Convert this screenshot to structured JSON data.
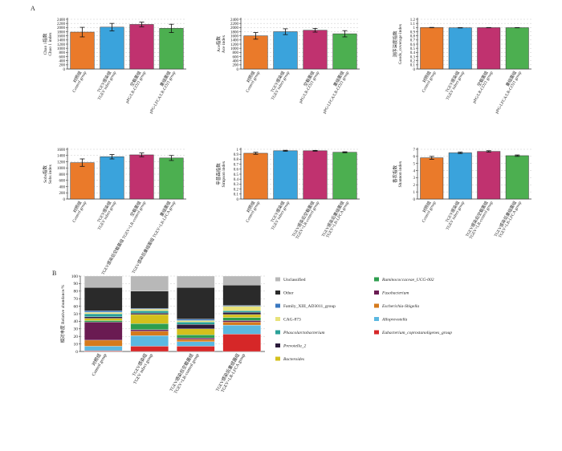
{
  "figure": {
    "label_a": "A",
    "label_b": "B"
  },
  "colors": {
    "orange": "#ea7a2a",
    "blue": "#3aa3dc",
    "magenta": "#c0326f",
    "green": "#4caf50"
  },
  "chart_data": [
    {
      "type": "bar",
      "ylabel_cn": "Chao 1指数",
      "ylabel_en": "Chao 1 index",
      "categories_cn": [
        "对照组",
        "TGEV感染组",
        "空载菌组",
        "重组菌组"
      ],
      "categories_en": [
        "Control group",
        "TGEV infect group",
        "pPG/LR-CO21 group",
        "pPG-LFCA/LR-CO21 group"
      ],
      "values": [
        1780,
        2020,
        2150,
        1960
      ],
      "errors": [
        230,
        180,
        110,
        200
      ],
      "ylim": [
        0,
        2400
      ],
      "yticks": [
        0,
        200,
        400,
        600,
        800,
        1000,
        1200,
        1400,
        1600,
        1800,
        2000,
        2200,
        2400
      ]
    },
    {
      "type": "bar",
      "ylabel_cn": "Ace指数",
      "ylabel_en": "Ace index",
      "categories_cn": [
        "对照组",
        "TGEV感染组",
        "空载菌组",
        "重组菌组"
      ],
      "categories_en": [
        "Control group",
        "TGEV infect group",
        "pPG/LR-CO21 group",
        "pPG-LFCA/LR-CO21 group"
      ],
      "values": [
        1600,
        1800,
        1870,
        1700
      ],
      "errors": [
        160,
        140,
        90,
        150
      ],
      "ylim": [
        0,
        2400
      ],
      "yticks": [
        0,
        200,
        400,
        600,
        800,
        1000,
        1200,
        1400,
        1600,
        1800,
        2000,
        2200,
        2400
      ]
    },
    {
      "type": "bar",
      "ylabel_cn": "测序深度指数",
      "ylabel_en": "Goods_coverage index",
      "categories_cn": [
        "对照组",
        "TGEV感染组",
        "空载菌组",
        "重组菌组"
      ],
      "categories_en": [
        "Control group",
        "TGEV infect group",
        "pPG/LR-CO21 group",
        "pPG-LFCA/LR-CO21 group"
      ],
      "values": [
        1.0,
        0.995,
        0.998,
        0.997
      ],
      "errors": [
        0.004,
        0.004,
        0.003,
        0.003
      ],
      "ylim": [
        0,
        1.2
      ],
      "yticks": [
        0,
        0.1,
        0.2,
        0.3,
        0.4,
        0.5,
        0.6,
        0.7,
        0.8,
        0.9,
        1.0,
        1.1,
        1.2
      ]
    },
    {
      "type": "bar",
      "ylabel_cn": "Sobs指数",
      "ylabel_en": "Sobs index",
      "categories_cn": [
        "对照组",
        "TGEV感染组",
        "空载菌组",
        "重组菌组"
      ],
      "categories_en": [
        "Control group",
        "TGEV infect group",
        "TGEV感染后空载菌组 TGEV+LR-control group",
        "TGEV感染后重组菌组 TGEV+LR-LFCA group"
      ],
      "values": [
        1170,
        1360,
        1420,
        1320
      ],
      "errors": [
        120,
        70,
        60,
        80
      ],
      "ylim": [
        0,
        1600
      ],
      "yticks": [
        0,
        200,
        400,
        600,
        800,
        1000,
        1200,
        1400,
        1600
      ]
    },
    {
      "type": "bar",
      "ylabel_cn": "辛普森指数",
      "ylabel_en": "Simpson index",
      "categories_cn": [
        "对照组",
        "TGEV感染组",
        "TGEV感染后空载菌组",
        "TGEV感染后重组菌组"
      ],
      "categories_en": [
        "Control group",
        "TGEV infect group",
        "TGEV+LR-control group",
        "TGEV+LR-LFCA group"
      ],
      "values": [
        0.92,
        0.97,
        0.97,
        0.94
      ],
      "errors": [
        0.02,
        0.01,
        0.008,
        0.01
      ],
      "ylim": [
        0,
        1.0
      ],
      "yticks": [
        0,
        0.1,
        0.2,
        0.3,
        0.4,
        0.5,
        0.6,
        0.7,
        0.8,
        0.9,
        1.0
      ]
    },
    {
      "type": "bar",
      "ylabel_cn": "香农指数",
      "ylabel_en": "Shannon index",
      "categories_cn": [
        "对照组",
        "TGEV感染组",
        "TGEV感染后空载菌组",
        "TGEV感染后重组菌组"
      ],
      "categories_en": [
        "Control group",
        "TGEV infect group",
        "TGEV+LR-control group",
        "TGEV+LR-LFCA group"
      ],
      "values": [
        5.8,
        6.5,
        6.7,
        6.1
      ],
      "errors": [
        0.2,
        0.1,
        0.1,
        0.1
      ],
      "ylim": [
        0,
        7
      ],
      "yticks": [
        0,
        1,
        2,
        3,
        4,
        5,
        6,
        7
      ]
    },
    {
      "type": "stacked_bar",
      "ylabel": "相对丰度 Relative abundance/%",
      "ylim": [
        0,
        100
      ],
      "yticks": [
        0,
        10,
        20,
        30,
        40,
        50,
        60,
        70,
        80,
        90,
        100
      ],
      "categories_cn": [
        "对照组",
        "TGEV感染组",
        "TGEV感染后空载菌组",
        "TGEV感染后重组菌组"
      ],
      "categories_en": [
        "Control group",
        "TGEV infect group",
        "TGEV+LR-control group",
        "TGEV+LR-LFCA group"
      ],
      "series": [
        {
          "name": "Eubacterium_coprostanoligenes_group",
          "italic": true,
          "color": "#d62728",
          "values": [
            1,
            7,
            7,
            23
          ]
        },
        {
          "name": "Alloprevotella",
          "italic": true,
          "color": "#5bb8e0",
          "values": [
            6,
            14,
            6,
            12
          ]
        },
        {
          "name": "Escherichia-Shigella",
          "italic": true,
          "color": "#d57a1c",
          "values": [
            8,
            6,
            3,
            4
          ]
        },
        {
          "name": "Fusobacterium",
          "italic": true,
          "color": "#6a1b52",
          "values": [
            24,
            2,
            2,
            2
          ]
        },
        {
          "name": "Ruminococcaceae_UCG-002",
          "italic": true,
          "color": "#2e9e4e",
          "values": [
            2,
            8,
            4,
            4
          ]
        },
        {
          "name": "Bacteroides",
          "italic": true,
          "color": "#d4c01c",
          "values": [
            3,
            12,
            8,
            4
          ]
        },
        {
          "name": "Prevotella_2",
          "italic": true,
          "color": "#2a1a3a",
          "values": [
            2,
            2,
            6,
            3
          ]
        },
        {
          "name": "Phascolarctobacterium",
          "italic": true,
          "color": "#2aa198",
          "values": [
            4,
            3,
            3,
            2
          ]
        },
        {
          "name": "CAG-873",
          "italic": false,
          "color": "#e8e27a",
          "values": [
            2,
            2,
            2,
            6
          ]
        },
        {
          "name": "Family_XIII_AD3011_group",
          "italic": false,
          "color": "#3a78c0",
          "values": [
            2,
            1,
            2,
            1
          ]
        },
        {
          "name": "Other",
          "italic": false,
          "color": "#2a2a2a",
          "values": [
            31,
            23,
            42,
            27
          ]
        },
        {
          "name": "Unclassified",
          "italic": false,
          "color": "#b8b8b8",
          "values": [
            15,
            20,
            15,
            12
          ]
        }
      ],
      "legend_left": [
        "Unclassified",
        "Other",
        "Family_XIII_AD3011_group",
        "CAG-873",
        "Phascolarctobacterium",
        "Prevotella_2",
        "Bacteroides"
      ],
      "legend_right": [
        "Ruminococcaceae_UCG-002",
        "Fusobacterium",
        "Escherichia-Shigella",
        "Alloprevotella",
        "Eubacterium_coprostanoligenes_group"
      ]
    }
  ]
}
